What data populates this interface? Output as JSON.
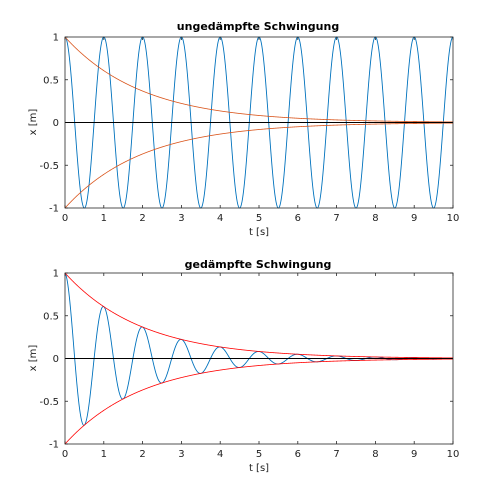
{
  "chart_data": [
    {
      "type": "line",
      "title": "ungedämpfte Schwingung",
      "xlabel": "t [s]",
      "ylabel": "x [m]",
      "xlim": [
        0,
        10
      ],
      "ylim": [
        -1,
        1
      ],
      "xticks": [
        "0",
        "1",
        "2",
        "3",
        "4",
        "5",
        "6",
        "7",
        "8",
        "9",
        "10"
      ],
      "yticks": [
        "1",
        "0.5",
        "0",
        "-0.5",
        "-1"
      ],
      "grid": false,
      "series": [
        {
          "kind": "cosine",
          "amplitude": 1,
          "frequency_hz": 1,
          "decay_per_s": 0,
          "color": "#0072BD"
        },
        {
          "kind": "envelope-upper",
          "amplitude": 1,
          "decay_per_s": 0.5,
          "color": "#D95319"
        },
        {
          "kind": "envelope-lower",
          "amplitude": -1,
          "decay_per_s": 0.5,
          "color": "#D95319"
        },
        {
          "kind": "zero-line",
          "y": 0,
          "color": "#000000"
        }
      ]
    },
    {
      "type": "line",
      "title": "gedämpfte Schwingung",
      "xlabel": "t [s]",
      "ylabel": "x [m]",
      "xlim": [
        0,
        10
      ],
      "ylim": [
        -1,
        1
      ],
      "xticks": [
        "0",
        "1",
        "2",
        "3",
        "4",
        "5",
        "6",
        "7",
        "8",
        "9",
        "10"
      ],
      "yticks": [
        "1",
        "0.5",
        "0",
        "-0.5",
        "-1"
      ],
      "grid": false,
      "series": [
        {
          "kind": "cosine",
          "amplitude": 1,
          "frequency_hz": 1,
          "decay_per_s": 0.5,
          "color": "#0072BD"
        },
        {
          "kind": "envelope-upper",
          "amplitude": 1,
          "decay_per_s": 0.5,
          "color": "#FF0000"
        },
        {
          "kind": "envelope-lower",
          "amplitude": -1,
          "decay_per_s": 0.5,
          "color": "#FF0000"
        },
        {
          "kind": "zero-line",
          "y": 0,
          "color": "#000000"
        }
      ]
    }
  ]
}
